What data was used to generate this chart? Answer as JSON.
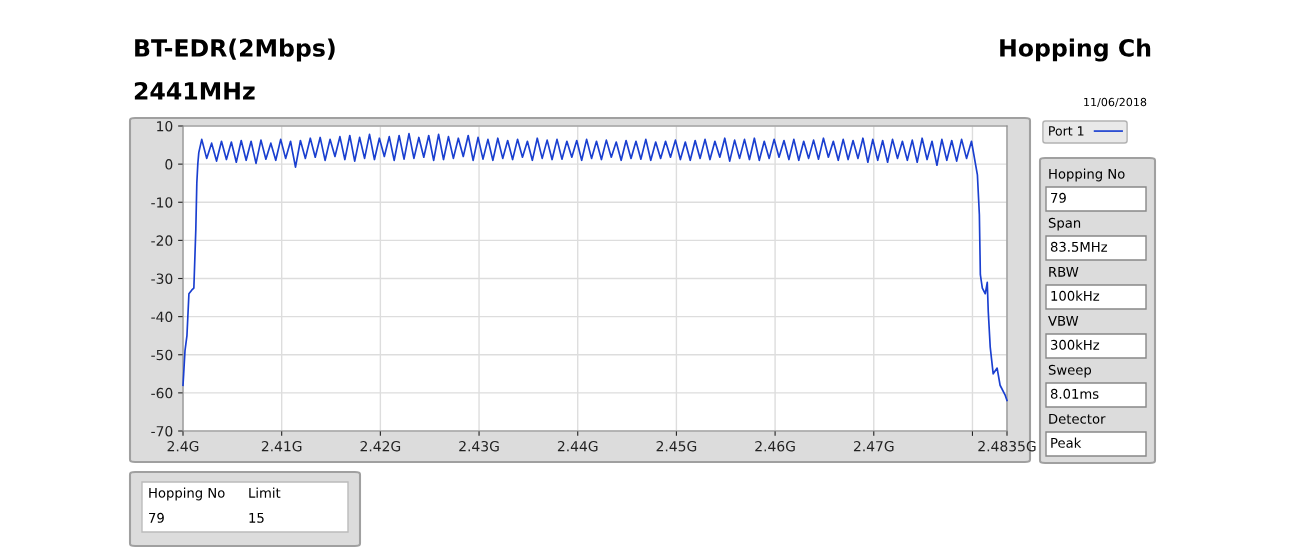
{
  "chart_data": {
    "type": "line",
    "title": "BT-EDR(2Mbps)",
    "subtitle": "2441MHz",
    "annotations": [
      "Hopping Ch",
      "11/06/2018",
      "Hopping No",
      "79",
      "Span",
      "83.5MHz",
      "RBW",
      "100kHz",
      "VBW",
      "300kHz",
      "Sweep",
      "8.01ms",
      "Detector",
      "Peak",
      "Hopping No",
      "Limit",
      "79",
      "15"
    ],
    "xlim": [
      2.4,
      2.4835
    ],
    "ylim": [
      -70,
      10
    ],
    "xticks": [
      {
        "value": 2.4,
        "label": "2.4G"
      },
      {
        "value": 2.41,
        "label": "2.41G"
      },
      {
        "value": 2.42,
        "label": "2.42G"
      },
      {
        "value": 2.43,
        "label": "2.43G"
      },
      {
        "value": 2.44,
        "label": "2.44G"
      },
      {
        "value": 2.45,
        "label": "2.45G"
      },
      {
        "value": 2.46,
        "label": "2.46G"
      },
      {
        "value": 2.47,
        "label": "2.47G"
      },
      {
        "value": 2.48,
        "label": null
      },
      {
        "value": 2.4835,
        "label": "2.4835G"
      }
    ],
    "yticks": [
      10,
      0,
      -10,
      -20,
      -30,
      -40,
      -50,
      -60,
      -70
    ],
    "grid": true,
    "legend": "top right",
    "marker": "none",
    "line_style": "solid",
    "series": [
      {
        "name": "Port 1",
        "color": "#1a3fd0",
        "x": [
          2.4,
          2.40007,
          2.4002,
          2.4004,
          2.4006,
          2.4009,
          2.4011,
          2.4013,
          2.4014,
          2.4015,
          2.4016,
          2.4019,
          2.4024,
          2.4029,
          2.4034,
          2.4039,
          2.4044,
          2.4049,
          2.4054,
          2.4059,
          2.4064,
          2.4069,
          2.4074,
          2.4079,
          2.4084,
          2.4089,
          2.4094,
          2.4099,
          2.4104,
          2.4109,
          2.4114,
          2.4119,
          2.4124,
          2.4129,
          2.4134,
          2.4139,
          2.4144,
          2.4149,
          2.4154,
          2.4159,
          2.4164,
          2.4169,
          2.4174,
          2.4179,
          2.4184,
          2.4189,
          2.4194,
          2.4199,
          2.4204,
          2.4209,
          2.4214,
          2.4219,
          2.4224,
          2.4229,
          2.4234,
          2.4239,
          2.4244,
          2.4249,
          2.4254,
          2.4259,
          2.4264,
          2.4269,
          2.4274,
          2.4279,
          2.4284,
          2.4289,
          2.4294,
          2.4299,
          2.4304,
          2.4309,
          2.4314,
          2.4319,
          2.4324,
          2.4329,
          2.4334,
          2.4339,
          2.4344,
          2.4349,
          2.4354,
          2.4359,
          2.4364,
          2.4369,
          2.4374,
          2.4379,
          2.4384,
          2.4389,
          2.4394,
          2.4399,
          2.4404,
          2.4409,
          2.4414,
          2.4419,
          2.4424,
          2.4429,
          2.4434,
          2.4439,
          2.4444,
          2.4449,
          2.4454,
          2.4459,
          2.4464,
          2.4469,
          2.4474,
          2.4479,
          2.4484,
          2.4489,
          2.4494,
          2.4499,
          2.4504,
          2.4509,
          2.4514,
          2.4519,
          2.4524,
          2.4529,
          2.4534,
          2.4539,
          2.4544,
          2.4549,
          2.4554,
          2.4559,
          2.4564,
          2.4569,
          2.4574,
          2.4579,
          2.4584,
          2.4589,
          2.4594,
          2.4599,
          2.4604,
          2.4609,
          2.4614,
          2.4619,
          2.4624,
          2.4629,
          2.4634,
          2.4639,
          2.4644,
          2.4649,
          2.4654,
          2.4659,
          2.4664,
          2.4669,
          2.4674,
          2.4679,
          2.4684,
          2.4689,
          2.4694,
          2.4699,
          2.4704,
          2.4709,
          2.4714,
          2.4719,
          2.4724,
          2.4729,
          2.4734,
          2.4739,
          2.4744,
          2.4749,
          2.4754,
          2.4759,
          2.4764,
          2.4769,
          2.4774,
          2.4779,
          2.4784,
          2.4789,
          2.4794,
          2.4799,
          2.4805,
          2.4807,
          2.4808,
          2.481,
          2.4813,
          2.4815,
          2.4816,
          2.4818,
          2.4821,
          2.4825,
          2.4828,
          2.4833,
          2.4835
        ],
        "values": [
          -58,
          -55,
          -49,
          -45,
          -34,
          -33,
          -32.5,
          -17,
          -5,
          0,
          3,
          6.5,
          1.5,
          5.5,
          0.8,
          6,
          1.2,
          5.8,
          0.5,
          6.2,
          1,
          6,
          0.2,
          6.3,
          1.3,
          5.5,
          1,
          6.5,
          1.5,
          6,
          -0.8,
          6.2,
          1.5,
          6.8,
          1.8,
          7,
          1,
          6.5,
          2,
          7.2,
          1.2,
          7.5,
          0.8,
          7,
          1.5,
          7.8,
          1.2,
          6.8,
          2,
          7.2,
          1,
          7.5,
          1.3,
          8,
          1.5,
          7,
          1.8,
          7.5,
          1,
          7.8,
          1.2,
          7.2,
          1.5,
          6.8,
          2,
          7.5,
          1,
          7,
          1.3,
          6.5,
          1,
          6.8,
          1.5,
          6.2,
          1.2,
          6.5,
          1.8,
          6,
          1,
          6.8,
          1.5,
          6.3,
          1.2,
          6.5,
          1.3,
          6,
          1.8,
          6.2,
          1,
          6.5,
          1.5,
          6,
          1.2,
          6.3,
          1.8,
          5.8,
          1,
          6.2,
          1.5,
          6,
          1.3,
          6.5,
          1,
          5.8,
          1.5,
          6,
          1.8,
          6.3,
          1.2,
          5.8,
          1,
          6.2,
          1.5,
          6.5,
          1.2,
          6,
          1.8,
          6.8,
          0.8,
          6.3,
          1.5,
          6.5,
          1.2,
          6.8,
          1,
          6,
          1.5,
          6.5,
          1.8,
          6.2,
          1.2,
          6.5,
          1,
          6,
          1.5,
          6.3,
          1.3,
          6.8,
          1.8,
          6,
          1,
          6.5,
          1.2,
          6.2,
          1.5,
          6.8,
          0.5,
          6.5,
          1,
          6.2,
          0.5,
          6.5,
          1.5,
          6,
          1,
          6.3,
          0.5,
          6.8,
          1.2,
          6,
          -0.3,
          6.5,
          1,
          6.2,
          0.8,
          6.5,
          1.5,
          6,
          -2.8,
          -13.3,
          -29,
          -32.5,
          -34,
          -31,
          -38.6,
          -48,
          -55,
          -53.5,
          -58,
          -60.5,
          -62
        ]
      }
    ]
  }
}
